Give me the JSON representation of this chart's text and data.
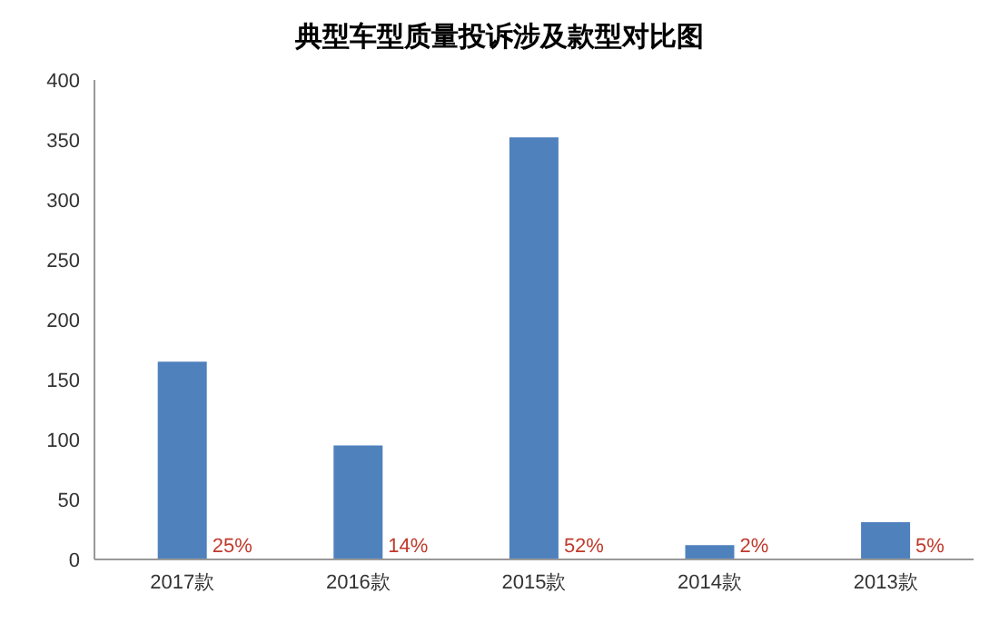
{
  "chart_data": {
    "type": "bar",
    "title": "典型车型质量投诉涉及款型对比图",
    "categories": [
      "2017款",
      "2016款",
      "2015款",
      "2014款",
      "2013款"
    ],
    "values": [
      165,
      95,
      352,
      12,
      31
    ],
    "annotations": [
      "25%",
      "14%",
      "52%",
      "2%",
      "5%"
    ],
    "color": "#4f81bd",
    "ylim": [
      0,
      400
    ],
    "yticks": [
      0,
      50,
      100,
      150,
      200,
      250,
      300,
      350,
      400
    ],
    "grid": false
  }
}
